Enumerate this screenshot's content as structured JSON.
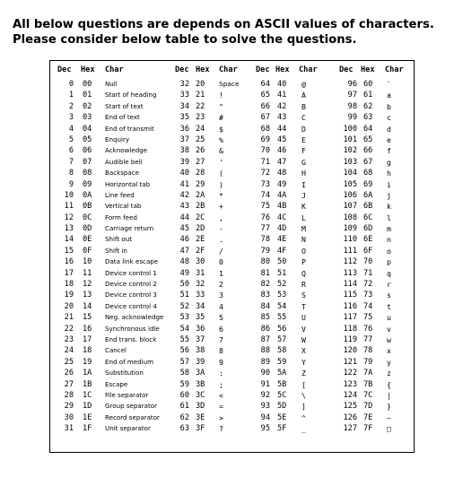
{
  "intro_text": "All below questions are depends on ASCII values of characters. Please consider below table to solve the questions.",
  "headers": [
    "Dec",
    "Hex",
    "Char"
  ],
  "columns": [
    [
      [
        "0",
        "00",
        "Null"
      ],
      [
        "1",
        "01",
        "Start of heading"
      ],
      [
        "2",
        "02",
        "Start of text"
      ],
      [
        "3",
        "03",
        "End of text"
      ],
      [
        "4",
        "04",
        "End of transmit"
      ],
      [
        "5",
        "05",
        "Enquiry"
      ],
      [
        "6",
        "06",
        "Acknowledge"
      ],
      [
        "7",
        "07",
        "Audible bell"
      ],
      [
        "8",
        "08",
        "Backspace"
      ],
      [
        "9",
        "09",
        "Horizontal tab"
      ],
      [
        "10",
        "0A",
        "Line feed"
      ],
      [
        "11",
        "0B",
        "Vertical tab"
      ],
      [
        "12",
        "0C",
        "Form feed"
      ],
      [
        "13",
        "0D",
        "Carriage return"
      ],
      [
        "14",
        "0E",
        "Shift out"
      ],
      [
        "15",
        "0F",
        "Shift in"
      ],
      [
        "16",
        "10",
        "Data link escape"
      ],
      [
        "17",
        "11",
        "Device control 1"
      ],
      [
        "18",
        "12",
        "Device control 2"
      ],
      [
        "19",
        "13",
        "Device control 3"
      ],
      [
        "20",
        "14",
        "Device control 4"
      ],
      [
        "21",
        "15",
        "Neg. acknowledge"
      ],
      [
        "22",
        "16",
        "Synchronous idle"
      ],
      [
        "23",
        "17",
        "End trans. block"
      ],
      [
        "24",
        "18",
        "Cancel"
      ],
      [
        "25",
        "19",
        "End of medium"
      ],
      [
        "26",
        "1A",
        "Substitution"
      ],
      [
        "27",
        "1B",
        "Escape"
      ],
      [
        "28",
        "1C",
        "File separator"
      ],
      [
        "29",
        "1D",
        "Group separator"
      ],
      [
        "30",
        "1E",
        "Record separator"
      ],
      [
        "31",
        "1F",
        "Unit separator"
      ]
    ],
    [
      [
        "32",
        "20",
        "Space"
      ],
      [
        "33",
        "21",
        "!"
      ],
      [
        "34",
        "22",
        "\""
      ],
      [
        "35",
        "23",
        "#"
      ],
      [
        "36",
        "24",
        "$"
      ],
      [
        "37",
        "25",
        "%"
      ],
      [
        "38",
        "26",
        "&"
      ],
      [
        "39",
        "27",
        "'"
      ],
      [
        "40",
        "28",
        "("
      ],
      [
        "41",
        "29",
        ")"
      ],
      [
        "42",
        "2A",
        "*"
      ],
      [
        "43",
        "2B",
        "+"
      ],
      [
        "44",
        "2C",
        ","
      ],
      [
        "45",
        "2D",
        "-"
      ],
      [
        "46",
        "2E",
        "."
      ],
      [
        "47",
        "2F",
        "/"
      ],
      [
        "48",
        "30",
        "0"
      ],
      [
        "49",
        "31",
        "1"
      ],
      [
        "50",
        "32",
        "2"
      ],
      [
        "51",
        "33",
        "3"
      ],
      [
        "52",
        "34",
        "4"
      ],
      [
        "53",
        "35",
        "5"
      ],
      [
        "54",
        "36",
        "6"
      ],
      [
        "55",
        "37",
        "7"
      ],
      [
        "56",
        "38",
        "8"
      ],
      [
        "57",
        "39",
        "9"
      ],
      [
        "58",
        "3A",
        ":"
      ],
      [
        "59",
        "3B",
        ";"
      ],
      [
        "60",
        "3C",
        "<"
      ],
      [
        "61",
        "3D",
        "="
      ],
      [
        "62",
        "3E",
        ">"
      ],
      [
        "63",
        "3F",
        "?"
      ]
    ],
    [
      [
        "64",
        "40",
        "@"
      ],
      [
        "65",
        "41",
        "A"
      ],
      [
        "66",
        "42",
        "B"
      ],
      [
        "67",
        "43",
        "C"
      ],
      [
        "68",
        "44",
        "D"
      ],
      [
        "69",
        "45",
        "E"
      ],
      [
        "70",
        "46",
        "F"
      ],
      [
        "71",
        "47",
        "G"
      ],
      [
        "72",
        "48",
        "H"
      ],
      [
        "73",
        "49",
        "I"
      ],
      [
        "74",
        "4A",
        "J"
      ],
      [
        "75",
        "4B",
        "K"
      ],
      [
        "76",
        "4C",
        "L"
      ],
      [
        "77",
        "4D",
        "M"
      ],
      [
        "78",
        "4E",
        "N"
      ],
      [
        "79",
        "4F",
        "O"
      ],
      [
        "80",
        "50",
        "P"
      ],
      [
        "81",
        "51",
        "Q"
      ],
      [
        "82",
        "52",
        "R"
      ],
      [
        "83",
        "53",
        "S"
      ],
      [
        "84",
        "54",
        "T"
      ],
      [
        "85",
        "55",
        "U"
      ],
      [
        "86",
        "56",
        "V"
      ],
      [
        "87",
        "57",
        "W"
      ],
      [
        "88",
        "58",
        "X"
      ],
      [
        "89",
        "59",
        "Y"
      ],
      [
        "90",
        "5A",
        "Z"
      ],
      [
        "91",
        "5B",
        "["
      ],
      [
        "92",
        "5C",
        "\\"
      ],
      [
        "93",
        "5D",
        "]"
      ],
      [
        "94",
        "5E",
        "^"
      ],
      [
        "95",
        "5F",
        "_"
      ]
    ],
    [
      [
        "96",
        "60",
        "`"
      ],
      [
        "97",
        "61",
        "a"
      ],
      [
        "98",
        "62",
        "b"
      ],
      [
        "99",
        "63",
        "c"
      ],
      [
        "100",
        "64",
        "d"
      ],
      [
        "101",
        "65",
        "e"
      ],
      [
        "102",
        "66",
        "f"
      ],
      [
        "103",
        "67",
        "g"
      ],
      [
        "104",
        "68",
        "h"
      ],
      [
        "105",
        "69",
        "i"
      ],
      [
        "106",
        "6A",
        "j"
      ],
      [
        "107",
        "6B",
        "k"
      ],
      [
        "108",
        "6C",
        "l"
      ],
      [
        "109",
        "6D",
        "m"
      ],
      [
        "110",
        "6E",
        "n"
      ],
      [
        "111",
        "6F",
        "o"
      ],
      [
        "112",
        "70",
        "p"
      ],
      [
        "113",
        "71",
        "q"
      ],
      [
        "114",
        "72",
        "r"
      ],
      [
        "115",
        "73",
        "s"
      ],
      [
        "116",
        "74",
        "t"
      ],
      [
        "117",
        "75",
        "u"
      ],
      [
        "118",
        "76",
        "v"
      ],
      [
        "119",
        "77",
        "w"
      ],
      [
        "120",
        "78",
        "x"
      ],
      [
        "121",
        "79",
        "y"
      ],
      [
        "122",
        "7A",
        "z"
      ],
      [
        "123",
        "7B",
        "{"
      ],
      [
        "124",
        "7C",
        "|"
      ],
      [
        "125",
        "7D",
        "}"
      ],
      [
        "126",
        "7E",
        "~"
      ],
      [
        "127",
        "7F",
        "□"
      ]
    ]
  ]
}
